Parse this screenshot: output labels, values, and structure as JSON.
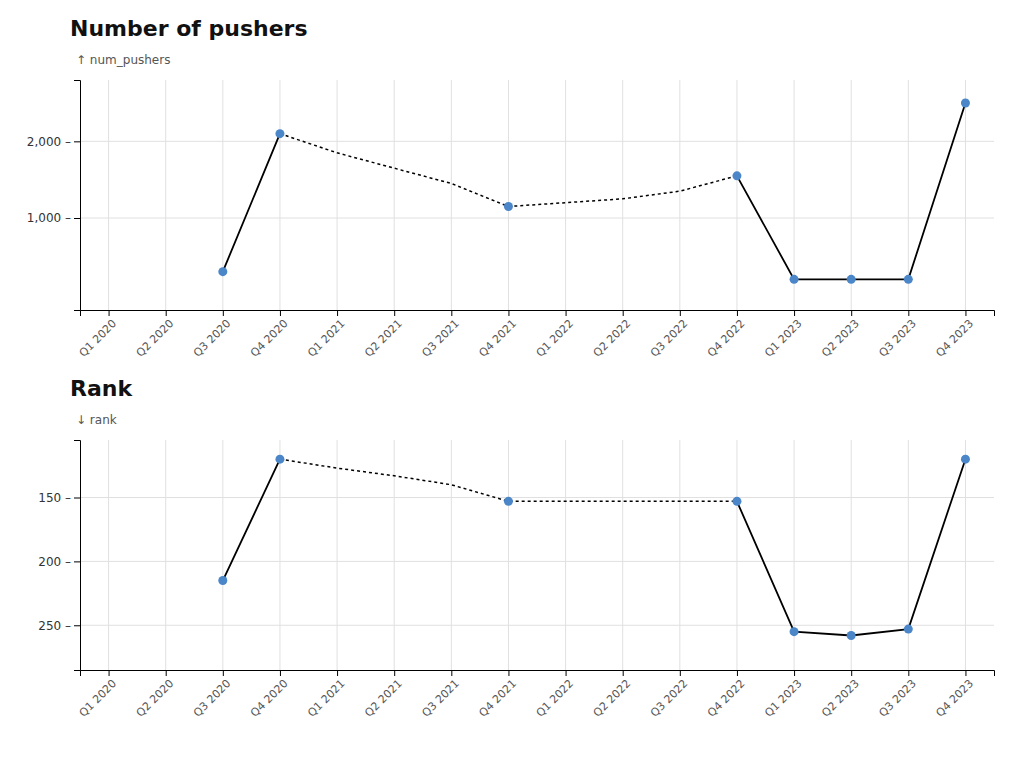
{
  "chart_data": [
    {
      "type": "line",
      "title": "Number of pushers",
      "y_label": "↑ num_pushers",
      "categories": [
        "Q1 2020",
        "Q2 2020",
        "Q3 2020",
        "Q4 2020",
        "Q1 2021",
        "Q2 2021",
        "Q3 2021",
        "Q4 2021",
        "Q1 2022",
        "Q2 2022",
        "Q3 2022",
        "Q4 2022",
        "Q1 2023",
        "Q2 2023",
        "Q3 2023",
        "Q4 2023"
      ],
      "series": [
        {
          "type": "line",
          "line_style": "solid",
          "color": "#000000",
          "values": [
            null,
            null,
            300,
            2100,
            null,
            null,
            null,
            null,
            null,
            null,
            null,
            1550,
            200,
            200,
            200,
            2500
          ]
        },
        {
          "type": "line",
          "line_style": "dotted",
          "color": "#000000",
          "values": [
            null,
            null,
            null,
            2100,
            1850,
            1650,
            1450,
            1150,
            1200,
            1250,
            1350,
            1550,
            null,
            null,
            null,
            null
          ]
        },
        {
          "type": "scatter",
          "marker": "circle",
          "color": "#4a86c8",
          "values": [
            null,
            null,
            300,
            2100,
            null,
            null,
            null,
            1150,
            null,
            null,
            null,
            1550,
            200,
            200,
            200,
            2500
          ]
        }
      ],
      "ylim": [
        -200,
        2800
      ],
      "yticks": [
        {
          "value": 1000,
          "label": "1,000 –"
        },
        {
          "value": 2000,
          "label": "2,000 –"
        }
      ],
      "grid": true
    },
    {
      "type": "line",
      "title": "Rank",
      "y_label": "↓ rank",
      "categories": [
        "Q1 2020",
        "Q2 2020",
        "Q3 2020",
        "Q4 2020",
        "Q1 2021",
        "Q2 2021",
        "Q3 2021",
        "Q4 2021",
        "Q1 2022",
        "Q2 2022",
        "Q3 2022",
        "Q4 2022",
        "Q1 2023",
        "Q2 2023",
        "Q3 2023",
        "Q4 2023"
      ],
      "series": [
        {
          "type": "line",
          "line_style": "solid",
          "color": "#000000",
          "values": [
            null,
            null,
            215,
            120,
            null,
            null,
            null,
            null,
            null,
            null,
            null,
            153,
            255,
            258,
            253,
            120
          ]
        },
        {
          "type": "line",
          "line_style": "dotted",
          "color": "#000000",
          "values": [
            null,
            null,
            null,
            120,
            127,
            133,
            140,
            153,
            153,
            153,
            153,
            153,
            null,
            null,
            null,
            null
          ]
        },
        {
          "type": "scatter",
          "marker": "circle",
          "color": "#4a86c8",
          "values": [
            null,
            null,
            215,
            120,
            null,
            null,
            null,
            153,
            null,
            null,
            null,
            153,
            255,
            258,
            253,
            120
          ]
        }
      ],
      "ylim": [
        285,
        105
      ],
      "yticks": [
        {
          "value": 150,
          "label": "150 –"
        },
        {
          "value": 200,
          "label": "200 –"
        },
        {
          "value": 250,
          "label": "250 –"
        }
      ],
      "grid": true
    }
  ]
}
